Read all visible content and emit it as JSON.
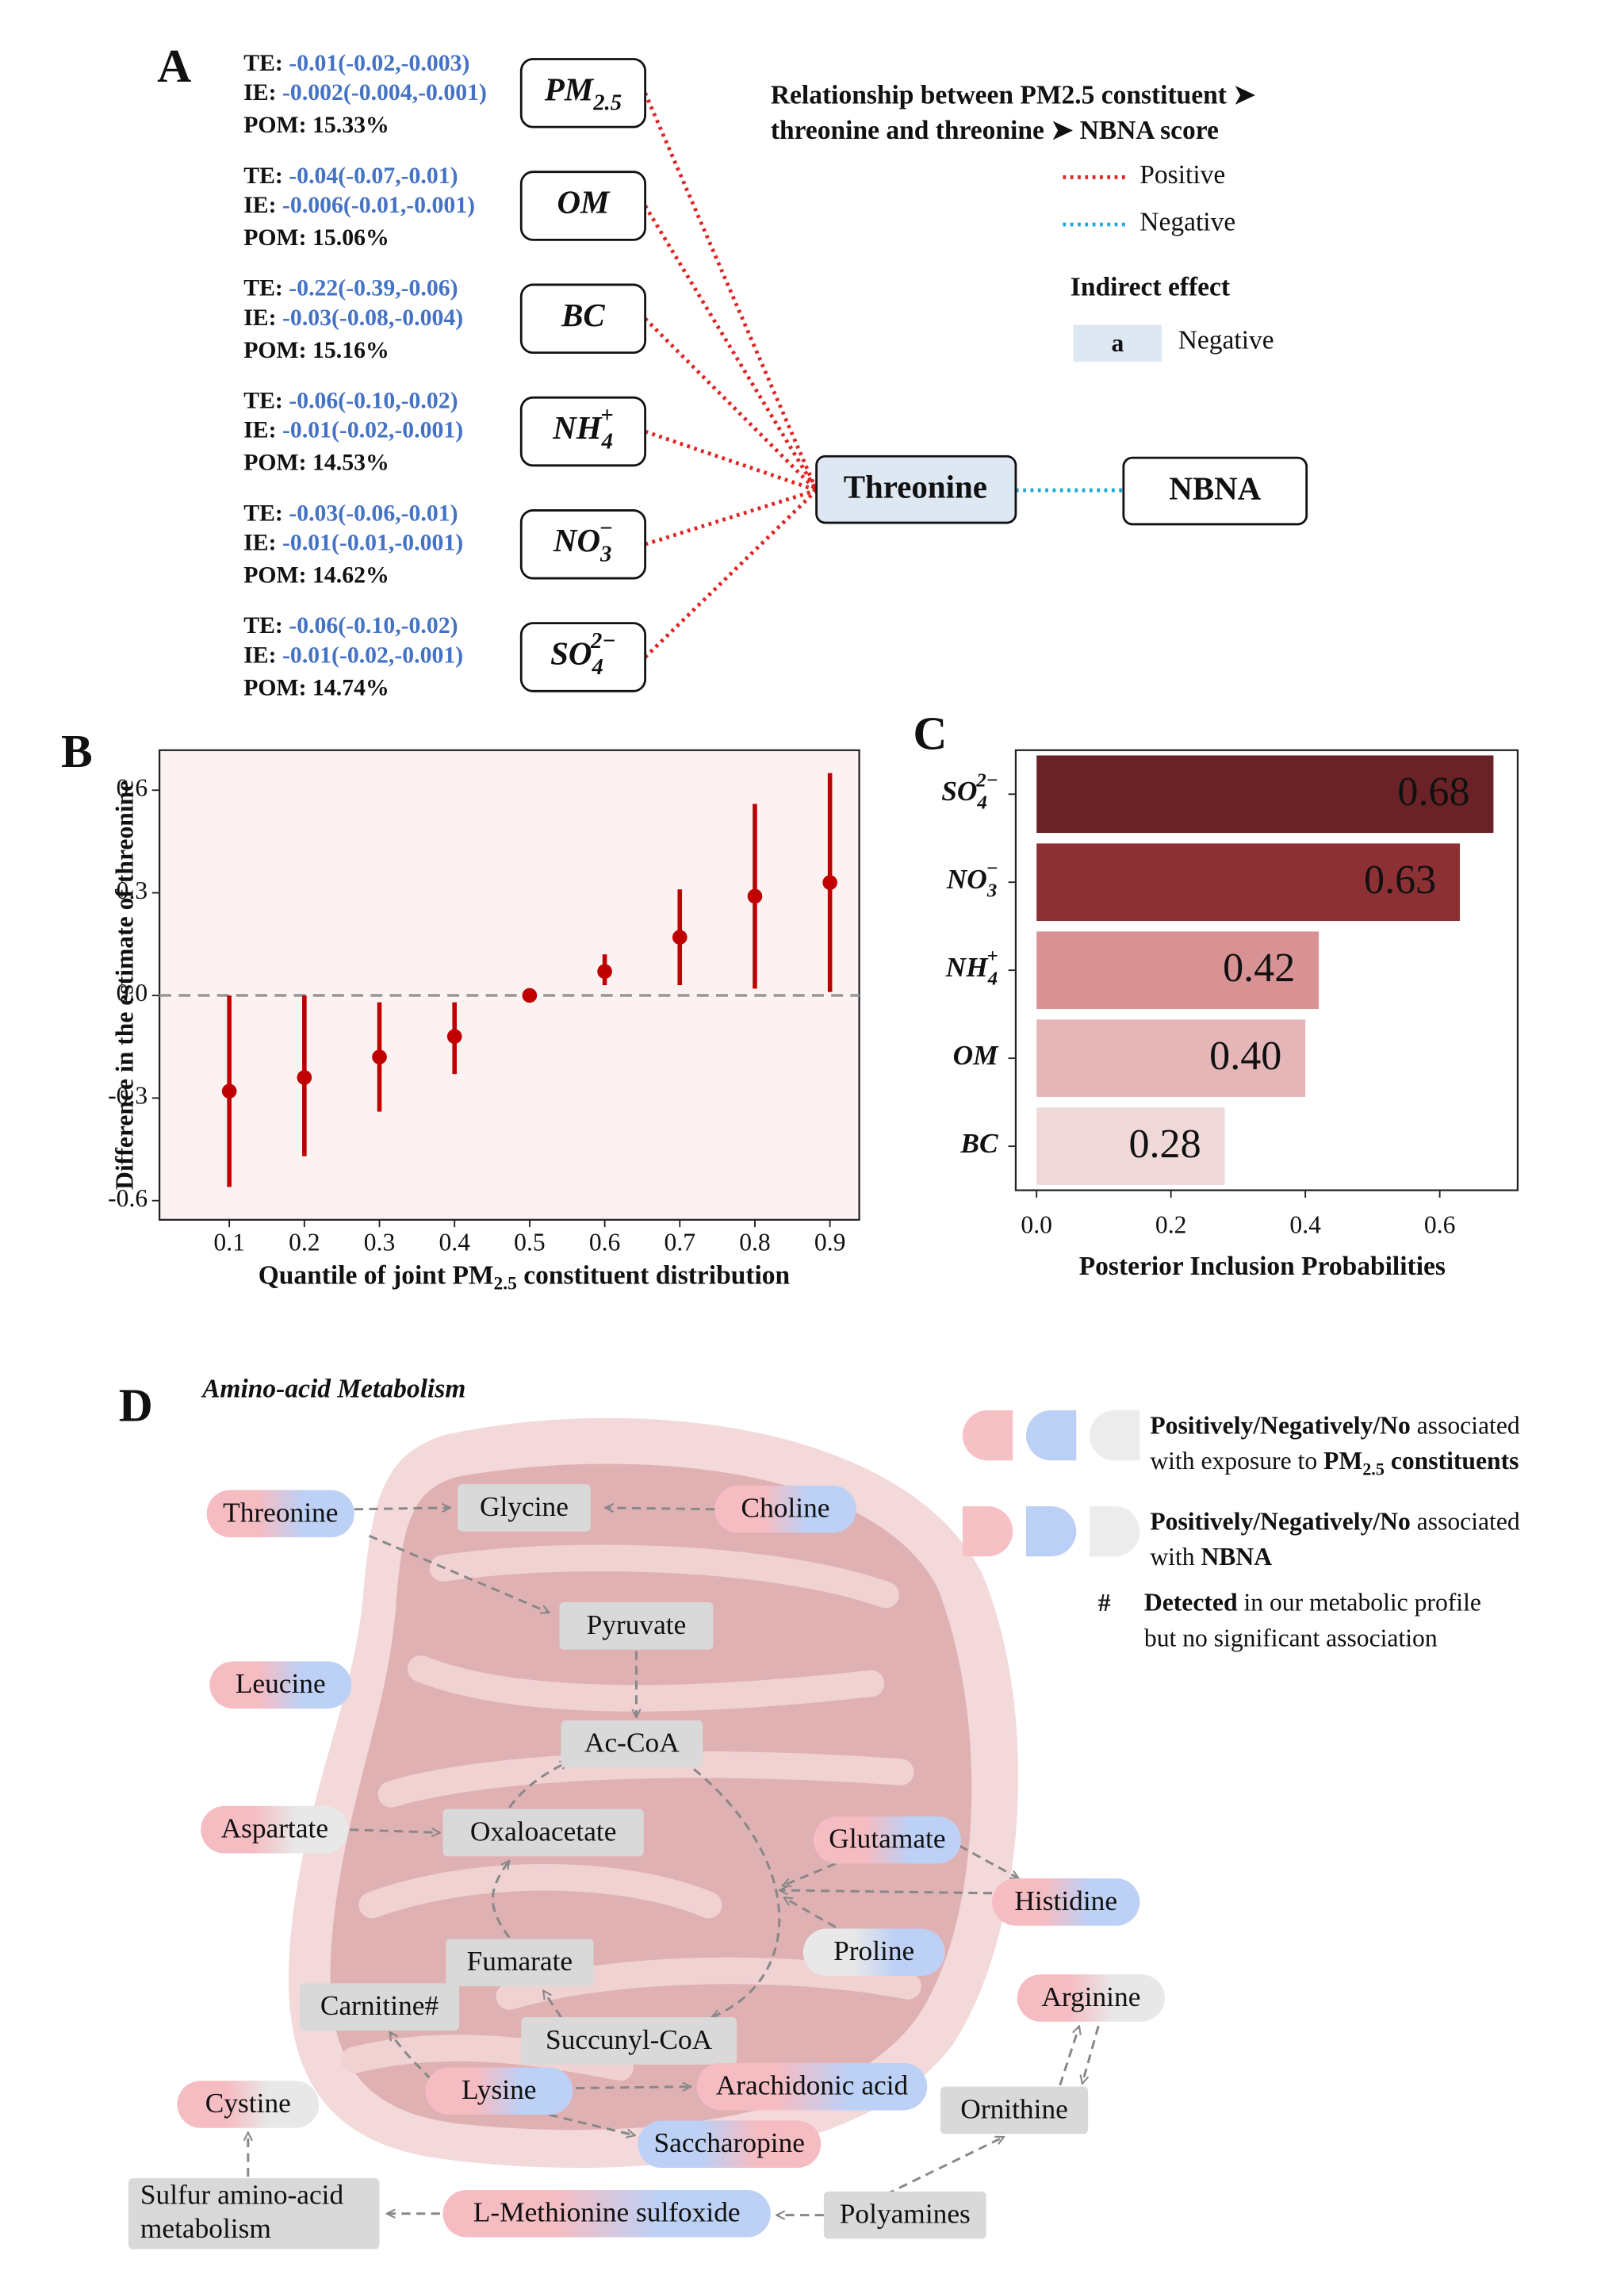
{
  "panel_labels": [
    "A",
    "B",
    "C",
    "D"
  ],
  "panel_a": {
    "row_labels": {
      "te": "TE:",
      "ie": "IE:",
      "pom": "POM:"
    },
    "rows": [
      {
        "node": {
          "base": "PM",
          "sub": "2.5"
        },
        "te": "-0.01(-0.02,-0.003)",
        "ie": "-0.002(-0.004,-0.001)",
        "pom": "15.33%"
      },
      {
        "node": {
          "base": "OM"
        },
        "te": "-0.04(-0.07,-0.01)",
        "ie": "-0.006(-0.01,-0.001)",
        "pom": "15.06%"
      },
      {
        "node": {
          "base": "BC"
        },
        "te": "-0.22(-0.39,-0.06)",
        "ie": "-0.03(-0.08,-0.004)",
        "pom": "15.16%"
      },
      {
        "node": {
          "base": "NH",
          "sub": "4",
          "sup": "+"
        },
        "te": "-0.06(-0.10,-0.02)",
        "ie": "-0.01(-0.02,-0.001)",
        "pom": "14.53%"
      },
      {
        "node": {
          "base": "NO",
          "sub": "3",
          "sup": "−"
        },
        "te": "-0.03(-0.06,-0.01)",
        "ie": "-0.01(-0.01,-0.001)",
        "pom": "14.62%"
      },
      {
        "node": {
          "base": "SO",
          "sub": "4",
          "sup": "2−"
        },
        "te": "-0.06(-0.10,-0.02)",
        "ie": "-0.01(-0.02,-0.001)",
        "pom": "14.74%"
      }
    ],
    "value_color": "#4472c4",
    "mediator": "Threonine",
    "outcome": "NBNA",
    "legend": {
      "title": [
        "Relationship between PM2.5 constituent ➤",
        "threonine and threonine ➤ NBNA score"
      ],
      "items": [
        {
          "name": "Positive",
          "color": "#e02424"
        },
        {
          "name": "Negative",
          "color": "#1ea7d6"
        }
      ],
      "indirect_title": "Indirect effect",
      "indirect_swatch": "a",
      "indirect_name": "Negative",
      "indirect_color": "#dde8f3"
    }
  },
  "chart_data": [
    {
      "type": "errorbar",
      "ylabel": "Difference in the estimate of threonine",
      "xlabel": [
        {
          "text": "Quantile of joint PM",
          "bold": true
        },
        {
          "text": "2.5",
          "bold": true,
          "sub": true
        },
        {
          "text": " constituent distribution",
          "bold": true
        }
      ],
      "x": [
        0.1,
        0.2,
        0.3,
        0.4,
        0.5,
        0.6,
        0.7,
        0.8,
        0.9
      ],
      "values": [
        -0.28,
        -0.24,
        -0.18,
        -0.12,
        0.0,
        0.07,
        0.17,
        0.29,
        0.33
      ],
      "lower": [
        -0.56,
        -0.47,
        -0.34,
        -0.23,
        0.0,
        0.03,
        0.03,
        0.02,
        0.01
      ],
      "upper": [
        0.0,
        0.0,
        -0.02,
        -0.02,
        0.0,
        0.12,
        0.31,
        0.56,
        0.65
      ],
      "color": "#c00000",
      "background": "#fdf2f2",
      "reference_line": 0,
      "xlim": [
        0.007,
        0.939
      ],
      "ylim": [
        -0.656,
        0.717
      ],
      "xticks": [
        0.1,
        0.2,
        0.3,
        0.4,
        0.5,
        0.6,
        0.7,
        0.8,
        0.9
      ],
      "yticks": [
        -0.6,
        -0.3,
        {
          "value": 0,
          "label": "0.0"
        },
        0.3,
        0.6
      ]
    },
    {
      "type": "hbar",
      "categories": [
        {
          "base": "SO",
          "sub": "4",
          "sup": "2−"
        },
        {
          "base": "NO",
          "sub": "3",
          "sup": "−"
        },
        {
          "base": "NH",
          "sub": "4",
          "sup": "+"
        },
        {
          "base": "OM"
        },
        {
          "base": "BC"
        }
      ],
      "values": [
        0.68,
        0.63,
        0.42,
        0.4,
        0.28
      ],
      "value_labels": [
        "0.68",
        "0.63",
        "0.42",
        "0.40",
        "0.28"
      ],
      "colors": [
        "#6b2226",
        "#8c3034",
        "#d99294",
        "#e4b6b7",
        "#f0d8d8"
      ],
      "xlabel": "Posterior Inclusion Probabilities",
      "xlim": [
        -0.031,
        0.716
      ],
      "xticks": [
        {
          "value": 0,
          "label": "0.0"
        },
        0.2,
        0.4,
        0.6
      ]
    }
  ],
  "panel_d": {
    "title": "Amino-acid Metabolism",
    "nodes": [
      {
        "label": "Threonine",
        "shape": "pill",
        "colors": [
          "#f5bcc2",
          "#bdd0f5"
        ]
      },
      {
        "label": "Glycine",
        "shape": "box",
        "colors": [
          "#d9d9d9",
          "#d9d9d9"
        ]
      },
      {
        "label": "Choline",
        "shape": "pill",
        "colors": [
          "#f5bcc2",
          "#bdd0f5"
        ]
      },
      {
        "label": "Pyruvate",
        "shape": "box",
        "colors": [
          "#d9d9d9",
          "#d9d9d9"
        ]
      },
      {
        "label": "Leucine",
        "shape": "pill",
        "colors": [
          "#f5bcc2",
          "#bdd0f5"
        ]
      },
      {
        "label": "Ac-CoA",
        "shape": "box",
        "colors": [
          "#d9d9d9",
          "#d9d9d9"
        ]
      },
      {
        "label": "Aspartate",
        "shape": "pill",
        "colors": [
          "#f5bcc2",
          "#e8e8e8"
        ]
      },
      {
        "label": "Oxaloacetate",
        "shape": "box",
        "colors": [
          "#d9d9d9",
          "#d9d9d9"
        ]
      },
      {
        "label": "Glutamate",
        "shape": "pill",
        "colors": [
          "#f5bcc2",
          "#bdd0f5"
        ]
      },
      {
        "label": "Histidine",
        "shape": "pill",
        "colors": [
          "#f5bcc2",
          "#bdd0f5"
        ]
      },
      {
        "label": "Proline",
        "shape": "pill",
        "colors": [
          "#e8e8e8",
          "#bdd0f5"
        ]
      },
      {
        "label": "Fumarate",
        "shape": "box",
        "colors": [
          "#d9d9d9",
          "#d9d9d9"
        ]
      },
      {
        "label": "Carnitine#",
        "shape": "box",
        "colors": [
          "#d9d9d9",
          "#d9d9d9"
        ]
      },
      {
        "label": "Succunyl-CoA",
        "shape": "box",
        "colors": [
          "#d9d9d9",
          "#d9d9d9"
        ]
      },
      {
        "label": "Arginine",
        "shape": "pill",
        "colors": [
          "#f5bcc2",
          "#e8e8e8"
        ]
      },
      {
        "label": "Cystine",
        "shape": "pill",
        "colors": [
          "#f5bcc2",
          "#e8e8e8"
        ]
      },
      {
        "label": "Lysine",
        "shape": "pill",
        "colors": [
          "#f5bcc2",
          "#bdd0f5"
        ]
      },
      {
        "label": "Arachidonic acid",
        "shape": "pill",
        "colors": [
          "#f5bcc2",
          "#bdd0f5"
        ]
      },
      {
        "label": "Ornithine",
        "shape": "box",
        "colors": [
          "#d9d9d9",
          "#d9d9d9"
        ]
      },
      {
        "label": "Saccharopine",
        "shape": "pill",
        "colors": [
          "#bdd0f5",
          "#f5bcc2"
        ]
      },
      {
        "label": [
          "Sulfur amino-acid",
          "metabolism"
        ],
        "shape": "box",
        "colors": [
          "#d9d9d9",
          "#d9d9d9"
        ]
      },
      {
        "label": "L-Methionine sulfoxide",
        "shape": "pill",
        "colors": [
          "#f5bcc2",
          "#bdd0f5"
        ]
      },
      {
        "label": "Polyamines",
        "shape": "box",
        "colors": [
          "#d9d9d9",
          "#d9d9d9"
        ]
      }
    ],
    "legend": [
      {
        "colors": [
          "#f6c1c5",
          "#bcd0f5",
          "#ececec"
        ],
        "lines": [
          [
            {
              "text": "Positively/Negatively/No",
              "bold": true
            },
            {
              "text": " associated"
            }
          ],
          [
            {
              "text": "with exposure to "
            },
            {
              "text": "PM",
              "bold": true
            },
            {
              "text": "2.5",
              "bold": true,
              "sub": true
            },
            {
              "text": " constituents",
              "bold": true
            }
          ]
        ]
      },
      {
        "colors": [
          "#f6c1c5",
          "#bcd0f5",
          "#ececec"
        ],
        "lines": [
          [
            {
              "text": "Positively/Negatively/No",
              "bold": true
            },
            {
              "text": " associated"
            }
          ],
          [
            {
              "text": " with "
            },
            {
              "text": "NBNA",
              "bold": true
            }
          ]
        ]
      }
    ],
    "footnote": {
      "mark": "#",
      "lines": [
        [
          {
            "text": "Detected",
            "bold": true
          },
          {
            "text": " in our metabolic profile"
          }
        ],
        [
          {
            "text": "but no significant association"
          }
        ]
      ]
    }
  }
}
